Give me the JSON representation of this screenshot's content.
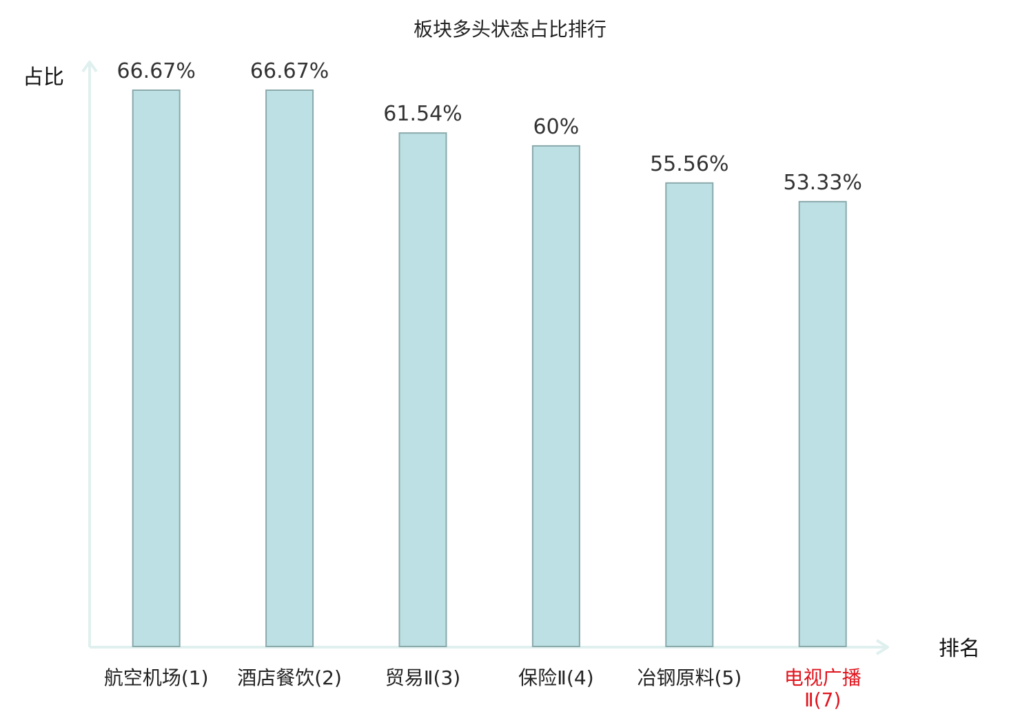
{
  "chart_data": {
    "type": "bar",
    "title": "板块多头状态占比排行",
    "ylabel": "占比",
    "xlabel": "排名",
    "categories": [
      [
        "航空机场(1)"
      ],
      [
        "酒店餐饮(2)"
      ],
      [
        "贸易Ⅱ(3)"
      ],
      [
        "保险Ⅱ(4)"
      ],
      [
        "冶钢原料(5)"
      ],
      [
        "电视广播",
        "Ⅱ(7)"
      ]
    ],
    "values": [
      66.67,
      66.67,
      61.54,
      60,
      55.56,
      53.33
    ],
    "value_labels": [
      "66.67%",
      "66.67%",
      "61.54%",
      "60%",
      "55.56%",
      "53.33%"
    ],
    "highlight_index": 5,
    "ylim": [
      0,
      66.67
    ],
    "grid": false,
    "colors": {
      "bar_fill": "#bce0e3",
      "bar_stroke": "#8aa9ab",
      "axis": "#dff0ee",
      "highlight": "#e0141e"
    }
  }
}
